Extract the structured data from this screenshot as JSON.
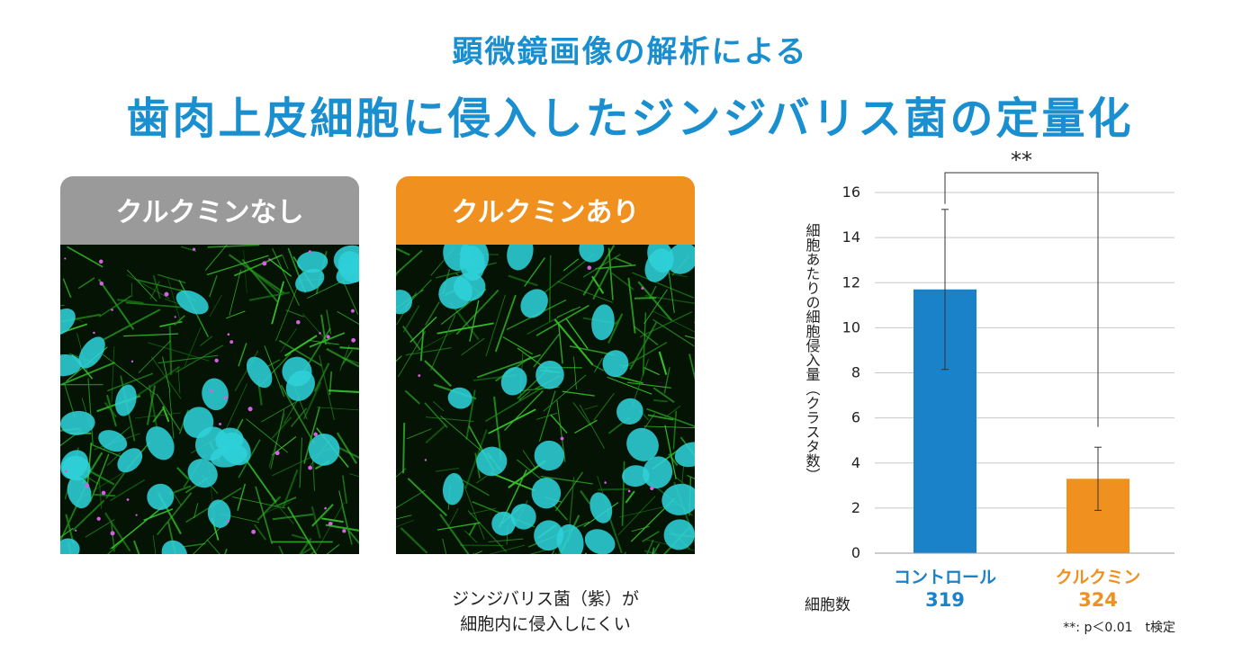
{
  "header": {
    "subtitle": "顕微鏡画像の解析による",
    "title": "歯肉上皮細胞に侵入したジンジバリス菌の定量化"
  },
  "panels": [
    {
      "label": "クルクミンなし",
      "color": "#9a9a9a",
      "nuclei": 32,
      "bacteria": 40
    },
    {
      "label": "クルクミンあり",
      "color": "#f0901e",
      "nuclei": 34,
      "bacteria": 8
    }
  ],
  "caption": {
    "line1": "ジンジバリス菌（紫）が",
    "line2": "細胞内に侵入しにくい"
  },
  "colors": {
    "title": "#1a8fd0",
    "control": "#1a82c8",
    "curcumin": "#f0901e"
  },
  "chart_data": {
    "type": "bar",
    "ylabel": "細胞あたりの細胞侵入量（クラスタ数）",
    "ylim": [
      0,
      16
    ],
    "yticks": [
      0,
      2,
      4,
      6,
      8,
      10,
      12,
      14,
      16
    ],
    "grid": true,
    "categories": [
      "コントロール",
      "クルクミン"
    ],
    "values": [
      11.7,
      3.3
    ],
    "error": [
      3.55,
      1.4
    ],
    "cell_count_label": "細胞数",
    "cell_counts": [
      "319",
      "324"
    ],
    "significance": "**",
    "footnote": "**: p＜0.01　t検定"
  }
}
